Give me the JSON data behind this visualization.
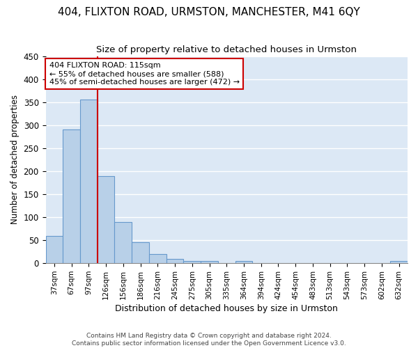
{
  "title1": "404, FLIXTON ROAD, URMSTON, MANCHESTER, M41 6QY",
  "title2": "Size of property relative to detached houses in Urmston",
  "xlabel": "Distribution of detached houses by size in Urmston",
  "ylabel": "Number of detached properties",
  "bar_labels": [
    "37sqm",
    "67sqm",
    "97sqm",
    "126sqm",
    "156sqm",
    "186sqm",
    "216sqm",
    "245sqm",
    "275sqm",
    "305sqm",
    "335sqm",
    "364sqm",
    "394sqm",
    "424sqm",
    "454sqm",
    "483sqm",
    "513sqm",
    "543sqm",
    "573sqm",
    "602sqm",
    "632sqm"
  ],
  "bar_values": [
    60,
    290,
    355,
    190,
    90,
    45,
    20,
    9,
    5,
    5,
    0,
    5,
    0,
    0,
    0,
    0,
    0,
    0,
    0,
    0,
    5
  ],
  "bar_color": "#b8d0e8",
  "bar_edge_color": "#6699cc",
  "vline_x_index": 3,
  "vline_color": "#cc0000",
  "annotation_text": "404 FLIXTON ROAD: 115sqm\n← 55% of detached houses are smaller (588)\n45% of semi-detached houses are larger (472) →",
  "annotation_box_color": "#ffffff",
  "annotation_box_edge": "#cc0000",
  "footer": "Contains HM Land Registry data © Crown copyright and database right 2024.\nContains public sector information licensed under the Open Government Licence v3.0.",
  "ylim": [
    0,
    450
  ],
  "yticks": [
    0,
    50,
    100,
    150,
    200,
    250,
    300,
    350,
    400,
    450
  ],
  "fig_background": "#ffffff",
  "ax_background": "#dce8f5",
  "grid_color": "#ffffff",
  "title1_fontsize": 11,
  "title2_fontsize": 9.5
}
